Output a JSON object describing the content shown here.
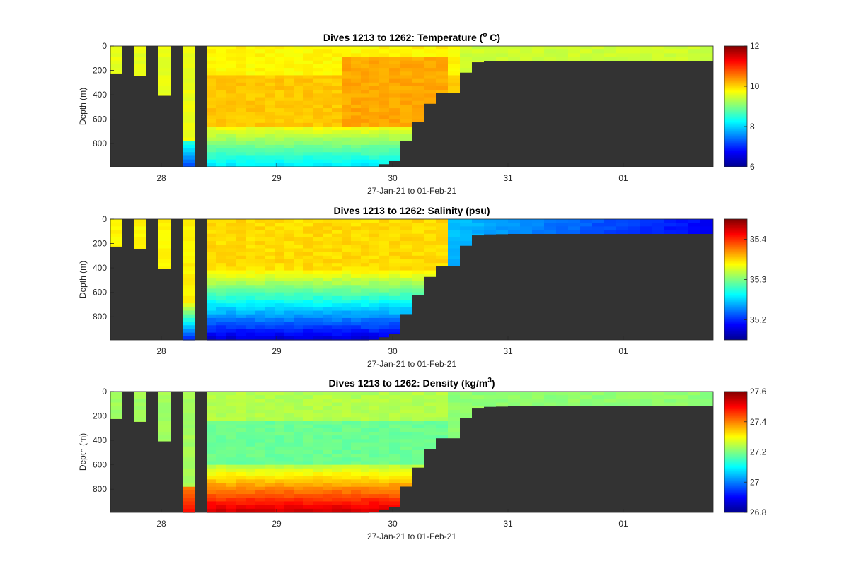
{
  "chart_data": [
    {
      "type": "heatmap",
      "variable": "temperature",
      "title_main": "Dives 1213 to 1262: Temperature (",
      "title_sup": "o",
      "title_end": " C)",
      "xlabel": "27-Jan-21 to 01-Feb-21",
      "ylabel": "Depth (m)",
      "x_ticks": [
        "28",
        "29",
        "30",
        "31",
        "01"
      ],
      "y_ticks": [
        "0",
        "200",
        "400",
        "600",
        "800"
      ],
      "ylim": [
        0,
        990
      ],
      "colorbar": {
        "ticks": [
          "6",
          "8",
          "10",
          "12"
        ],
        "range": [
          6,
          12
        ]
      },
      "no_data_color": "#333333"
    },
    {
      "type": "heatmap",
      "variable": "salinity",
      "title_main": "Dives 1213 to 1262: Salinity (psu)",
      "title_sup": "",
      "title_end": "",
      "xlabel": "27-Jan-21 to 01-Feb-21",
      "ylabel": "Depth (m)",
      "x_ticks": [
        "28",
        "29",
        "30",
        "31",
        "01"
      ],
      "y_ticks": [
        "0",
        "200",
        "400",
        "600",
        "800"
      ],
      "ylim": [
        0,
        990
      ],
      "colorbar": {
        "ticks": [
          "35.2",
          "35.3",
          "35.4"
        ],
        "range": [
          35.15,
          35.45
        ]
      },
      "no_data_color": "#333333"
    },
    {
      "type": "heatmap",
      "variable": "density",
      "title_main": "Dives 1213 to 1262: Density (kg/m",
      "title_sup": "3",
      "title_end": ")",
      "xlabel": "27-Jan-21 to 01-Feb-21",
      "ylabel": "Depth (m)",
      "x_ticks": [
        "28",
        "29",
        "30",
        "31",
        "01"
      ],
      "y_ticks": [
        "0",
        "200",
        "400",
        "600",
        "800"
      ],
      "ylim": [
        0,
        990
      ],
      "colorbar": {
        "ticks": [
          "26.8",
          "27",
          "27.2",
          "27.4",
          "27.6"
        ],
        "range": [
          26.8,
          27.6
        ]
      },
      "no_data_color": "#333333"
    }
  ]
}
